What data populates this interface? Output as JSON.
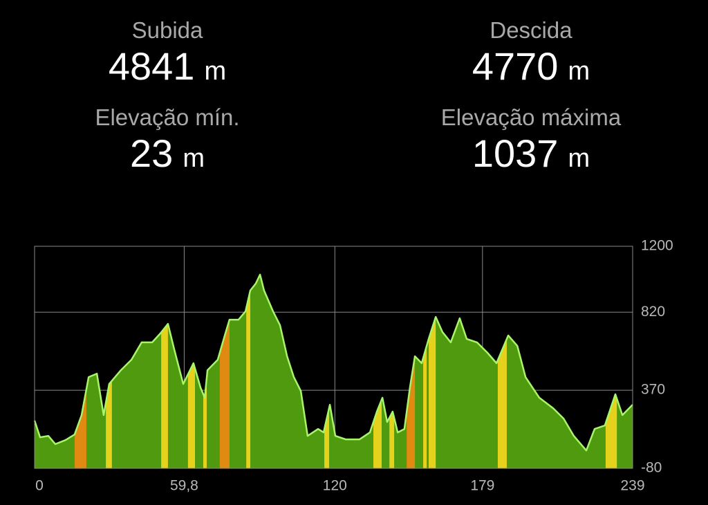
{
  "stats": [
    {
      "label": "Subida",
      "value": 4841,
      "unit": "m"
    },
    {
      "label": "Descida",
      "value": 4770,
      "unit": "m"
    },
    {
      "label": "Elevação mín.",
      "value": 23,
      "unit": "m"
    },
    {
      "label": "Elevação máxima",
      "value": 1037,
      "unit": "m"
    }
  ],
  "chart_data": {
    "type": "area",
    "x": [
      0,
      2.2,
      5.5,
      8.3,
      12.4,
      16,
      18.8,
      21.6,
      24.9,
      27.6,
      29.8,
      34.5,
      38.7,
      42.8,
      47,
      50.3,
      53.3,
      55.8,
      59.4,
      63.5,
      66.3,
      68,
      69.1,
      73.2,
      76,
      77.9,
      81.5,
      84.3,
      86.2,
      88.4,
      90.1,
      91.7,
      95.3,
      98.1,
      100.9,
      103.6,
      106.4,
      109.1,
      113.3,
      115.5,
      118,
      120.2,
      124.3,
      129.9,
      134,
      136.8,
      139,
      140.9,
      143.1,
      145.1,
      147.8,
      150,
      152,
      154.7,
      157.5,
      160.3,
      163,
      166.3,
      169.9,
      172.7,
      176.8,
      181,
      184.6,
      189.3,
      192.9,
      196.2,
      201.7,
      207.2,
      211.4,
      215.5,
      220.5,
      223.8,
      227.9,
      232.1,
      234.9,
      239
    ],
    "values": [
      195,
      99,
      107,
      60,
      83,
      115,
      227,
      446,
      466,
      227,
      406,
      486,
      546,
      646,
      646,
      698,
      753,
      606,
      406,
      526,
      386,
      327,
      486,
      546,
      686,
      777,
      777,
      825,
      945,
      985,
      1037,
      945,
      825,
      745,
      566,
      446,
      366,
      107,
      147,
      127,
      287,
      107,
      87,
      87,
      127,
      247,
      327,
      187,
      247,
      127,
      147,
      386,
      566,
      526,
      666,
      793,
      706,
      646,
      785,
      666,
      646,
      586,
      526,
      686,
      626,
      446,
      327,
      267,
      207,
      107,
      23,
      147,
      167,
      347,
      227,
      287
    ],
    "xlim": [
      0,
      239
    ],
    "ylim": [
      -80,
      1200
    ],
    "xticks": [
      0,
      {
        "value": 59.8,
        "label": "59,8"
      },
      120,
      179,
      239
    ],
    "yticks": [
      -80,
      370,
      820,
      1200
    ],
    "grid": true,
    "color": "#4f9a0f",
    "line_color": "#a8f56c",
    "bands": [
      {
        "start": 16,
        "end": 20.7,
        "color": "#e08a12"
      },
      {
        "start": 28.5,
        "end": 30.9,
        "color": "#e6d21c"
      },
      {
        "start": 50.6,
        "end": 53.3,
        "color": "#e6d21c"
      },
      {
        "start": 61.3,
        "end": 64.1,
        "color": "#e6d21c"
      },
      {
        "start": 67.4,
        "end": 68.8,
        "color": "#e6d21c"
      },
      {
        "start": 74,
        "end": 77.9,
        "color": "#e08a12"
      },
      {
        "start": 84.6,
        "end": 86.2,
        "color": "#e6d21c"
      },
      {
        "start": 115.8,
        "end": 117.7,
        "color": "#e6d21c"
      },
      {
        "start": 135.4,
        "end": 138.7,
        "color": "#e6d21c"
      },
      {
        "start": 141.8,
        "end": 143.7,
        "color": "#e6d21c"
      },
      {
        "start": 148.7,
        "end": 152,
        "color": "#e08a12"
      },
      {
        "start": 155.3,
        "end": 156.7,
        "color": "#e6d21c"
      },
      {
        "start": 157.5,
        "end": 160.3,
        "color": "#e6d21c"
      },
      {
        "start": 185.1,
        "end": 188.7,
        "color": "#e6d21c"
      },
      {
        "start": 228.2,
        "end": 232.7,
        "color": "#e6d21c"
      }
    ]
  }
}
